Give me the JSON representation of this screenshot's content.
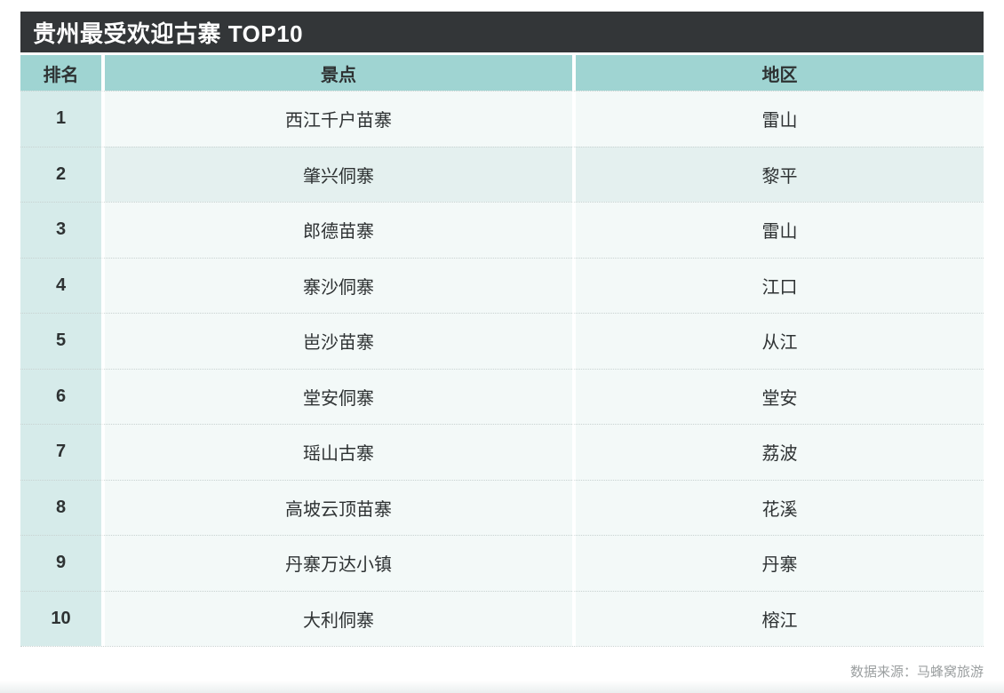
{
  "chart_data": {
    "type": "table",
    "title": "贵州最受欢迎古寨 TOP10",
    "columns": [
      "排名",
      "景点",
      "地区"
    ],
    "rows": [
      [
        "1",
        "西江千户苗寨",
        "雷山"
      ],
      [
        "2",
        "肇兴侗寨",
        "黎平"
      ],
      [
        "3",
        "郎德苗寨",
        "雷山"
      ],
      [
        "4",
        "寨沙侗寨",
        "江口"
      ],
      [
        "5",
        "岜沙苗寨",
        "从江"
      ],
      [
        "6",
        "堂安侗寨",
        "堂安"
      ],
      [
        "7",
        "瑶山古寨",
        "荔波"
      ],
      [
        "8",
        "高坡云顶苗寨",
        "花溪"
      ],
      [
        "9",
        "丹寨万达小镇",
        "丹寨"
      ],
      [
        "10",
        "大利侗寨",
        "榕江"
      ]
    ],
    "source": "数据来源：马蜂窝旅游"
  },
  "colors": {
    "title_bar_bg": "#333638",
    "title_text": "#FFFFFF",
    "header_row_bg": "#9FD4D2",
    "rank_column_bg": "#D6EBEA",
    "row_bg": "#F3F9F8",
    "row_highlight_bg": "#E4F0EF",
    "divider": "#C8D2D1",
    "body_text": "#2E3233",
    "source_text": "#9B9FA0"
  }
}
